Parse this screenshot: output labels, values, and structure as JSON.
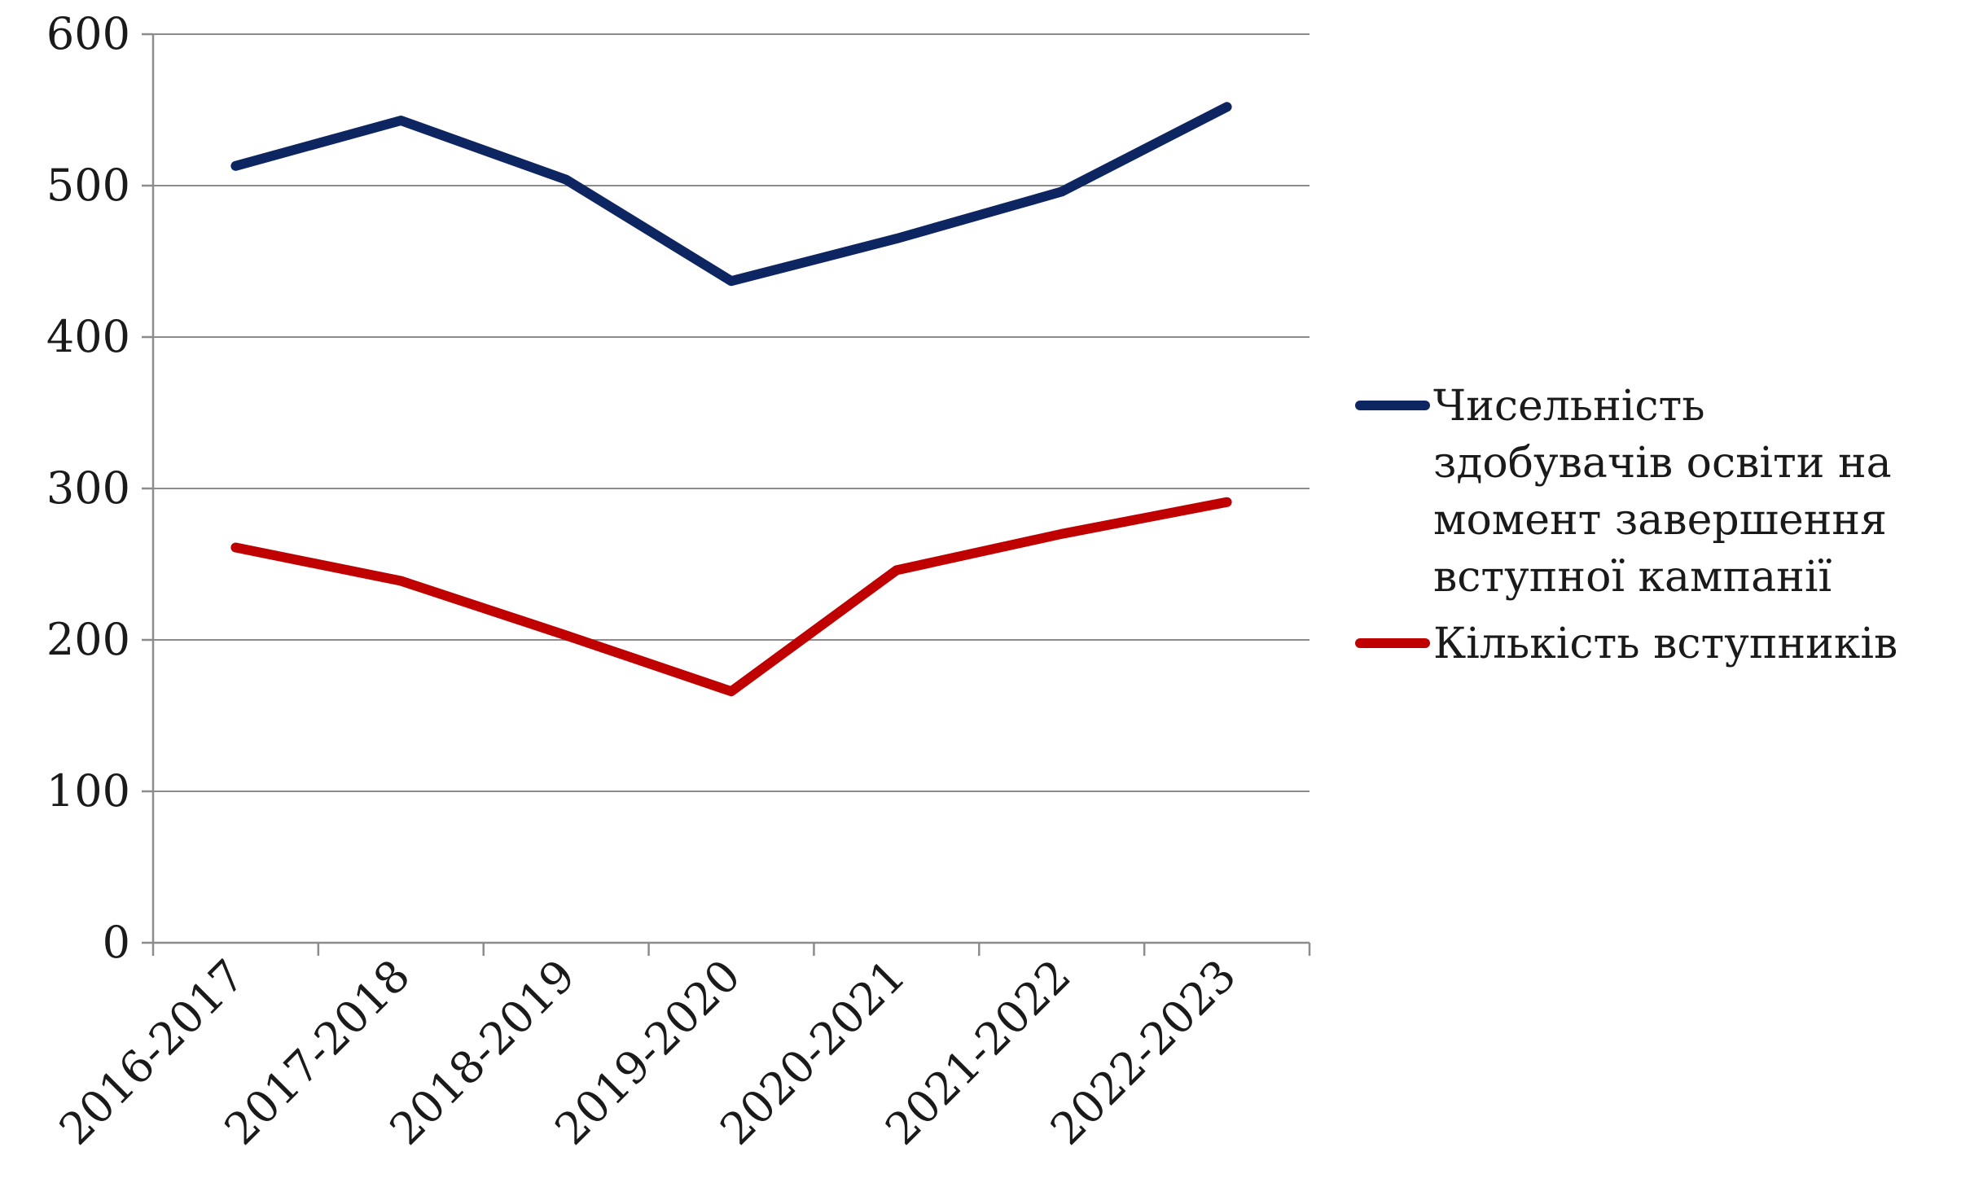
{
  "chart_data": {
    "type": "line",
    "categories": [
      "2016-2017",
      "2017-2018",
      "2018-2019",
      "2019-2020",
      "2020-2021",
      "2021-2022",
      "2022-2023"
    ],
    "series": [
      {
        "name": "Чисельність здобувачів освіти на момент завершення вступної кампанії",
        "legend_lines": [
          "Чисельність",
          "здобувачів освіти на",
          "момент завершення",
          "вступної кампанії"
        ],
        "color": "#0d2560",
        "values": [
          513,
          543,
          504,
          437,
          465,
          496,
          552
        ]
      },
      {
        "name": "Кількість вступників",
        "legend_lines": [
          "Кількість вступників"
        ],
        "color": "#c00000",
        "values": [
          261,
          239,
          203,
          166,
          246,
          270,
          291
        ]
      }
    ],
    "yticks": [
      "0",
      "100",
      "200",
      "300",
      "400",
      "500",
      "600"
    ],
    "ylim": [
      0,
      600
    ],
    "grid": true,
    "legend_position": "right",
    "title": "",
    "xlabel": "",
    "ylabel": ""
  }
}
